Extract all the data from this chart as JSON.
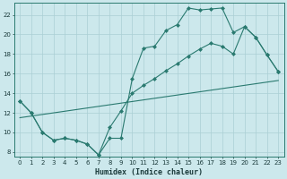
{
  "xlabel": "Humidex (Indice chaleur)",
  "bg_color": "#cce8ec",
  "line_color": "#2a7a70",
  "grid_color": "#aacfd4",
  "xlim": [
    -0.5,
    23.5
  ],
  "ylim": [
    7.5,
    23.2
  ],
  "yticks": [
    8,
    10,
    12,
    14,
    16,
    18,
    20,
    22
  ],
  "xticks": [
    0,
    1,
    2,
    3,
    4,
    5,
    6,
    7,
    8,
    9,
    10,
    11,
    12,
    13,
    14,
    15,
    16,
    17,
    18,
    19,
    20,
    21,
    22,
    23
  ],
  "line1_x": [
    0,
    1,
    2,
    3,
    4,
    5,
    6,
    7,
    8,
    9,
    10,
    11,
    12,
    13,
    14,
    15,
    16,
    17,
    18,
    19,
    20,
    21,
    22,
    23
  ],
  "line1_y": [
    13.2,
    12.0,
    10.0,
    9.2,
    9.4,
    9.2,
    8.8,
    7.7,
    9.4,
    9.4,
    15.5,
    18.6,
    18.8,
    20.4,
    21.0,
    22.7,
    22.5,
    22.6,
    22.7,
    20.2,
    20.8,
    19.7,
    17.9,
    16.2
  ],
  "line2_x": [
    0,
    1,
    2,
    3,
    4,
    5,
    6,
    7,
    8,
    9,
    10,
    11,
    12,
    13,
    14,
    15,
    16,
    17,
    18,
    19,
    20,
    21,
    22,
    23
  ],
  "line2_y": [
    13.2,
    12.0,
    10.0,
    9.2,
    9.4,
    9.2,
    8.8,
    7.7,
    10.5,
    12.2,
    14.0,
    14.8,
    15.5,
    16.3,
    17.0,
    17.8,
    18.5,
    19.1,
    18.8,
    18.0,
    20.8,
    19.7,
    17.9,
    16.2
  ],
  "line3_x": [
    0,
    23
  ],
  "line3_y": [
    11.5,
    15.3
  ]
}
